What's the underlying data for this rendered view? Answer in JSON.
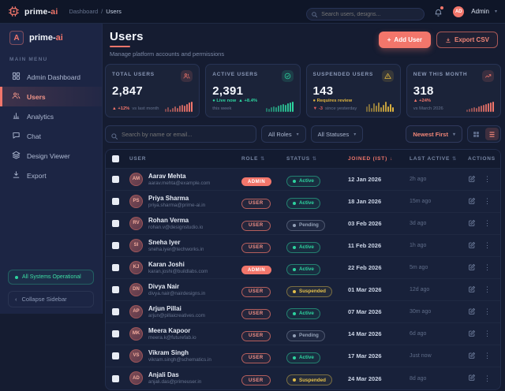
{
  "colors": {
    "accent": "#f2766b",
    "green": "#2dd49f",
    "yellow": "#e0b53f",
    "red": "#e05d5d"
  },
  "topbar": {
    "brand_prefix": "prime-",
    "brand_suffix": "ai",
    "breadcrumb": [
      "Dashboard",
      "Users"
    ],
    "breadcrumb_separator": "/",
    "search_placeholder": "Search users, designs...",
    "user_initials": "AD",
    "user_name": "Admin"
  },
  "sidebar": {
    "logo_letter": "A",
    "brand_prefix": "prime-",
    "brand_suffix": "ai",
    "section_label": "MAIN MENU",
    "items": [
      {
        "label": "Admin Dashboard",
        "icon": "grid-icon",
        "active": false
      },
      {
        "label": "Users",
        "icon": "users-icon",
        "active": true
      },
      {
        "label": "Analytics",
        "icon": "bar-chart-icon",
        "active": false
      },
      {
        "label": "Chat",
        "icon": "chat-icon",
        "active": false
      },
      {
        "label": "Design Viewer",
        "icon": "layers-icon",
        "active": false
      },
      {
        "label": "Export",
        "icon": "download-icon",
        "active": false
      }
    ],
    "status_text": "All Systems Operational",
    "collapse_label": "Collapse Sidebar"
  },
  "header": {
    "title": "Users",
    "subtitle": "Manage platform accounts and permissions",
    "add_user_label": "Add User",
    "export_label": "Export CSV"
  },
  "chart_data": [
    {
      "type": "bar",
      "title": "TOTAL USERS sparkline",
      "values": [
        4,
        6,
        3,
        5,
        7,
        5,
        8,
        9,
        8,
        10,
        12,
        13
      ]
    },
    {
      "type": "bar",
      "title": "ACTIVE USERS sparkline",
      "values": [
        5,
        4,
        6,
        7,
        6,
        8,
        9,
        10,
        9,
        11,
        12,
        13
      ]
    },
    {
      "type": "bar",
      "title": "SUSPENDED USERS sparkline",
      "values": [
        7,
        10,
        5,
        11,
        8,
        12,
        6,
        9,
        13,
        7,
        10,
        6
      ]
    },
    {
      "type": "bar",
      "title": "NEW THIS MONTH sparkline",
      "values": [
        3,
        4,
        5,
        6,
        5,
        7,
        8,
        9,
        10,
        11,
        12,
        13
      ]
    }
  ],
  "stats": [
    {
      "label": "TOTAL USERS",
      "value": "2,847",
      "icon": "users-icon",
      "tone": "accent",
      "meta": [
        {
          "text": "▲ +12%",
          "tone": "accent"
        },
        {
          "text": "vs last month",
          "tone": "dim"
        }
      ]
    },
    {
      "label": "ACTIVE USERS",
      "value": "2,391",
      "icon": "check-circle-icon",
      "tone": "green",
      "meta": [
        {
          "text": "● Live now",
          "tone": "green"
        },
        {
          "text": "▲ +8.4%",
          "tone": "green"
        },
        {
          "text": "this week",
          "tone": "dim"
        }
      ]
    },
    {
      "label": "SUSPENDED USERS",
      "value": "143",
      "icon": "warning-icon",
      "tone": "yellow",
      "meta": [
        {
          "text": "● Requires review",
          "tone": "yellow"
        },
        {
          "text": "▼ -3",
          "tone": "red"
        },
        {
          "text": "since yesterday",
          "tone": "dim"
        }
      ]
    },
    {
      "label": "NEW THIS MONTH",
      "value": "318",
      "icon": "trend-up-icon",
      "tone": "accent",
      "meta": [
        {
          "text": "▲ +24%",
          "tone": "accent"
        },
        {
          "text": "vs March 2026",
          "tone": "dim"
        }
      ]
    }
  ],
  "filters": {
    "search_placeholder": "Search by name or email...",
    "roles_label": "All Roles",
    "statuses_label": "All Statuses",
    "sort_label": "Newest First",
    "view_mode": "list"
  },
  "table": {
    "columns": [
      {
        "label": "USER",
        "sort": "none"
      },
      {
        "label": "ROLE",
        "sort": "both"
      },
      {
        "label": "STATUS",
        "sort": "both"
      },
      {
        "label": "JOINED (IST)",
        "sort": "desc",
        "active": true
      },
      {
        "label": "LAST ACTIVE",
        "sort": "both"
      },
      {
        "label": "ACTIONS",
        "sort": "none"
      }
    ],
    "rows": [
      {
        "initials": "AM",
        "name": "Aarav Mehta",
        "email": "aarav.mehta@example.com",
        "role": "ADMIN",
        "status": "Active",
        "joined": "12 Jan 2026",
        "last_active": "2h ago"
      },
      {
        "initials": "PS",
        "name": "Priya Sharma",
        "email": "priya.sharma@prime-ai.in",
        "role": "USER",
        "status": "Active",
        "joined": "18 Jan 2026",
        "last_active": "15m ago"
      },
      {
        "initials": "RV",
        "name": "Rohan Verma",
        "email": "rohan.v@designstudio.io",
        "role": "USER",
        "status": "Pending",
        "joined": "03 Feb 2026",
        "last_active": "3d ago"
      },
      {
        "initials": "SI",
        "name": "Sneha Iyer",
        "email": "sneha.iyer@techworks.in",
        "role": "USER",
        "status": "Active",
        "joined": "11 Feb 2026",
        "last_active": "1h ago"
      },
      {
        "initials": "KJ",
        "name": "Karan Joshi",
        "email": "karan.joshi@buildlabs.com",
        "role": "ADMIN",
        "status": "Active",
        "joined": "22 Feb 2026",
        "last_active": "5m ago"
      },
      {
        "initials": "DN",
        "name": "Divya Nair",
        "email": "divya.nair@nairdesigns.in",
        "role": "USER",
        "status": "Suspended",
        "joined": "01 Mar 2026",
        "last_active": "12d ago"
      },
      {
        "initials": "AP",
        "name": "Arjun Pillai",
        "email": "arjun@pillaicreatives.com",
        "role": "USER",
        "status": "Active",
        "joined": "07 Mar 2026",
        "last_active": "30m ago"
      },
      {
        "initials": "MK",
        "name": "Meera Kapoor",
        "email": "meera.k@futurefab.io",
        "role": "USER",
        "status": "Pending",
        "joined": "14 Mar 2026",
        "last_active": "6d ago"
      },
      {
        "initials": "VS",
        "name": "Vikram Singh",
        "email": "vikram.singh@schematics.in",
        "role": "USER",
        "status": "Active",
        "joined": "17 Mar 2026",
        "last_active": "Just now"
      },
      {
        "initials": "AD",
        "name": "Anjali Das",
        "email": "anjali.das@primeuser.in",
        "role": "USER",
        "status": "Suspended",
        "joined": "24 Mar 2026",
        "last_active": "8d ago"
      }
    ]
  }
}
